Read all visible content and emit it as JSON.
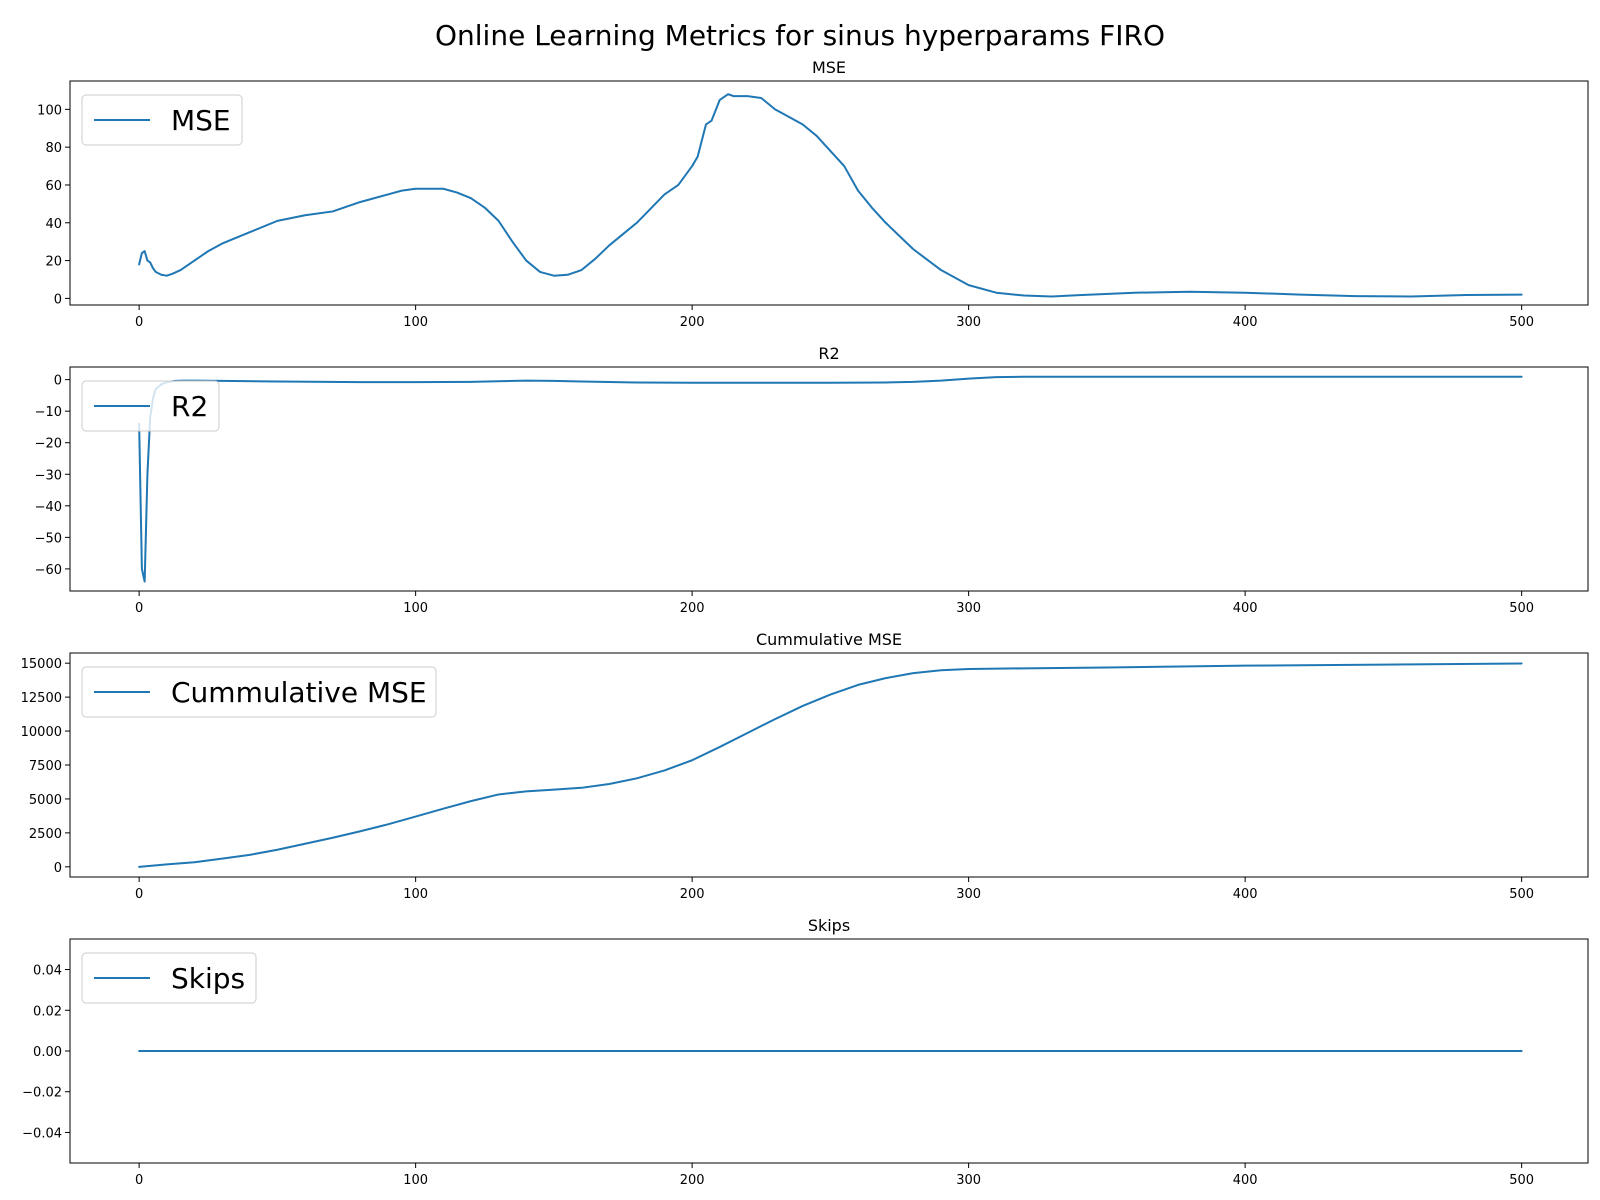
{
  "figure_title": "Online Learning Metrics for sinus hyperparams FIRO",
  "colors": {
    "series": "#1f77b4"
  },
  "chart_data": [
    {
      "type": "line",
      "title": "MSE",
      "xlabel": "",
      "ylabel": "",
      "xlim": [
        -25,
        524
      ],
      "ylim": [
        -3.5,
        115
      ],
      "xticks": [
        0,
        100,
        200,
        300,
        400,
        500
      ],
      "yticks": [
        0,
        20,
        40,
        60,
        80,
        100
      ],
      "ytick_labels": [
        "0",
        "20",
        "40",
        "60",
        "80",
        "100"
      ],
      "grid": false,
      "legend_position": "upper-left",
      "series": [
        {
          "name": "MSE",
          "x": [
            0,
            1,
            2,
            3,
            4,
            5,
            6,
            8,
            10,
            12,
            15,
            20,
            25,
            30,
            40,
            50,
            60,
            70,
            80,
            90,
            95,
            100,
            105,
            110,
            115,
            120,
            125,
            130,
            135,
            140,
            145,
            150,
            155,
            160,
            165,
            170,
            180,
            190,
            195,
            200,
            202,
            205,
            207,
            210,
            213,
            215,
            220,
            225,
            230,
            235,
            240,
            245,
            250,
            255,
            260,
            265,
            270,
            280,
            290,
            300,
            310,
            320,
            330,
            340,
            360,
            380,
            400,
            420,
            440,
            460,
            480,
            500
          ],
          "y": [
            18,
            24,
            25,
            20,
            19,
            16,
            14,
            12.5,
            12,
            13,
            15,
            20,
            25,
            29,
            35,
            41,
            44,
            46,
            51,
            55,
            57,
            58,
            58,
            58,
            56,
            53,
            48,
            41,
            30,
            20,
            14,
            12,
            12.5,
            15,
            21,
            28,
            40,
            55,
            60,
            70,
            75,
            92,
            94,
            105,
            108,
            107,
            107,
            106,
            100,
            96,
            92,
            86,
            78,
            70,
            57,
            48,
            40,
            26,
            15,
            7,
            3,
            1.5,
            1,
            1.7,
            3,
            3.5,
            3,
            2,
            1.2,
            1,
            1.8,
            2
          ]
        }
      ]
    },
    {
      "type": "line",
      "title": "R2",
      "xlabel": "",
      "ylabel": "",
      "xlim": [
        -25,
        524
      ],
      "ylim": [
        -67,
        4
      ],
      "xticks": [
        0,
        100,
        200,
        300,
        400,
        500
      ],
      "yticks": [
        0,
        -10,
        -20,
        -30,
        -40,
        -50,
        -60
      ],
      "ytick_labels": [
        "0",
        "−10",
        "−20",
        "−30",
        "−40",
        "−50",
        "−60"
      ],
      "grid": false,
      "legend_position": "upper-left",
      "series": [
        {
          "name": "R2",
          "x": [
            0,
            1,
            2,
            3,
            4,
            5,
            6,
            8,
            10,
            13,
            16,
            20,
            30,
            50,
            80,
            100,
            120,
            140,
            150,
            160,
            180,
            200,
            220,
            250,
            270,
            280,
            290,
            300,
            310,
            320,
            340,
            400,
            450,
            500
          ],
          "y": [
            -14,
            -60,
            -64,
            -30,
            -12,
            -6,
            -3,
            -1.5,
            -0.8,
            -0.4,
            -0.3,
            -0.3,
            -0.4,
            -0.6,
            -0.8,
            -0.8,
            -0.7,
            -0.3,
            -0.4,
            -0.6,
            -0.9,
            -1,
            -1,
            -1,
            -0.9,
            -0.7,
            -0.3,
            0.3,
            0.8,
            0.9,
            0.9,
            0.9,
            0.9,
            0.9
          ]
        }
      ]
    },
    {
      "type": "line",
      "title": "Cummulative MSE",
      "xlabel": "",
      "ylabel": "",
      "xlim": [
        -25,
        524
      ],
      "ylim": [
        -750,
        15750
      ],
      "xticks": [
        0,
        100,
        200,
        300,
        400,
        500
      ],
      "yticks": [
        0,
        2500,
        5000,
        7500,
        10000,
        12500,
        15000
      ],
      "ytick_labels": [
        "0",
        "2500",
        "5000",
        "7500",
        "10000",
        "12500",
        "15000"
      ],
      "grid": false,
      "legend_position": "upper-left",
      "series": [
        {
          "name": "Cummulative MSE",
          "x": [
            0,
            10,
            20,
            30,
            40,
            50,
            60,
            70,
            80,
            90,
            100,
            110,
            120,
            130,
            140,
            150,
            160,
            170,
            180,
            190,
            200,
            210,
            220,
            230,
            240,
            250,
            260,
            270,
            280,
            290,
            300,
            320,
            350,
            400,
            450,
            500
          ],
          "y": [
            0,
            180,
            340,
            600,
            880,
            1260,
            1700,
            2140,
            2620,
            3130,
            3700,
            4280,
            4840,
            5330,
            5560,
            5690,
            5820,
            6100,
            6520,
            7100,
            7850,
            8830,
            9860,
            10880,
            11850,
            12690,
            13400,
            13900,
            14270,
            14480,
            14570,
            14620,
            14680,
            14820,
            14890,
            14980
          ]
        }
      ]
    },
    {
      "type": "line",
      "title": "Skips",
      "xlabel": "",
      "ylabel": "",
      "xlim": [
        -25,
        524
      ],
      "ylim": [
        -0.055,
        0.055
      ],
      "xticks": [
        0,
        100,
        200,
        300,
        400,
        500
      ],
      "yticks": [
        0.04,
        0.02,
        0,
        -0.02,
        -0.04
      ],
      "ytick_labels": [
        "0.04",
        "0.02",
        "0.00",
        "−0.02",
        "−0.04"
      ],
      "grid": false,
      "legend_position": "upper-left",
      "series": [
        {
          "name": "Skips",
          "x": [
            0,
            500
          ],
          "y": [
            0,
            0
          ]
        }
      ]
    }
  ]
}
